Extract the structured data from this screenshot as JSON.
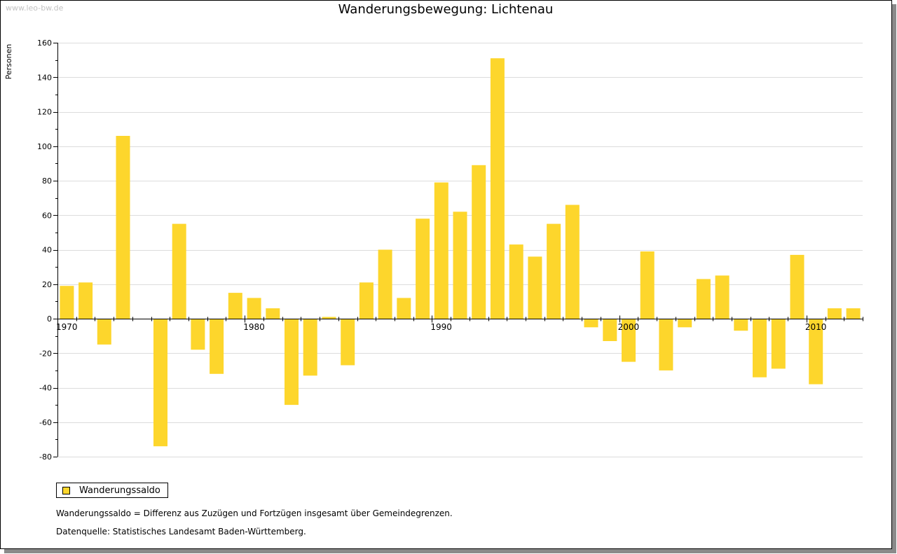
{
  "watermark": "www.leo-bw.de",
  "chart_data": {
    "type": "bar",
    "title": "Wanderungsbewegung: Lichtenau",
    "ylabel": "Personen",
    "xlabel": "",
    "ylim": [
      -80,
      160
    ],
    "yticks": [
      160,
      140,
      120,
      100,
      80,
      60,
      40,
      20,
      0,
      -20,
      -40,
      -60,
      -80
    ],
    "xtick_labels": [
      "1970",
      "1980",
      "1990",
      "2000",
      "2010"
    ],
    "grid": true,
    "categories": [
      1970,
      1971,
      1972,
      1973,
      1974,
      1975,
      1976,
      1977,
      1978,
      1979,
      1980,
      1981,
      1982,
      1983,
      1984,
      1985,
      1986,
      1987,
      1988,
      1989,
      1990,
      1991,
      1992,
      1993,
      1994,
      1995,
      1996,
      1997,
      1998,
      1999,
      2000,
      2001,
      2002,
      2003,
      2004,
      2005,
      2006,
      2007,
      2008,
      2009,
      2010,
      2011,
      2012
    ],
    "series": [
      {
        "name": "Wanderungssaldo",
        "color": "#fdd62c",
        "values": [
          19,
          21,
          -15,
          106,
          0,
          -74,
          55,
          -18,
          -32,
          15,
          12,
          6,
          -50,
          -33,
          1,
          -27,
          21,
          40,
          12,
          58,
          79,
          62,
          89,
          151,
          43,
          36,
          55,
          66,
          -5,
          -13,
          -25,
          39,
          -30,
          -5,
          23,
          25,
          -7,
          -34,
          -29,
          37,
          -38,
          6,
          6
        ]
      }
    ],
    "legend_position": "bottom-left"
  },
  "notes": {
    "definition": "Wanderungssaldo = Differenz aus Zuzügen und Fortzügen insgesamt über Gemeindegrenzen.",
    "source": "Datenquelle: Statistisches Landesamt Baden-Württemberg."
  }
}
